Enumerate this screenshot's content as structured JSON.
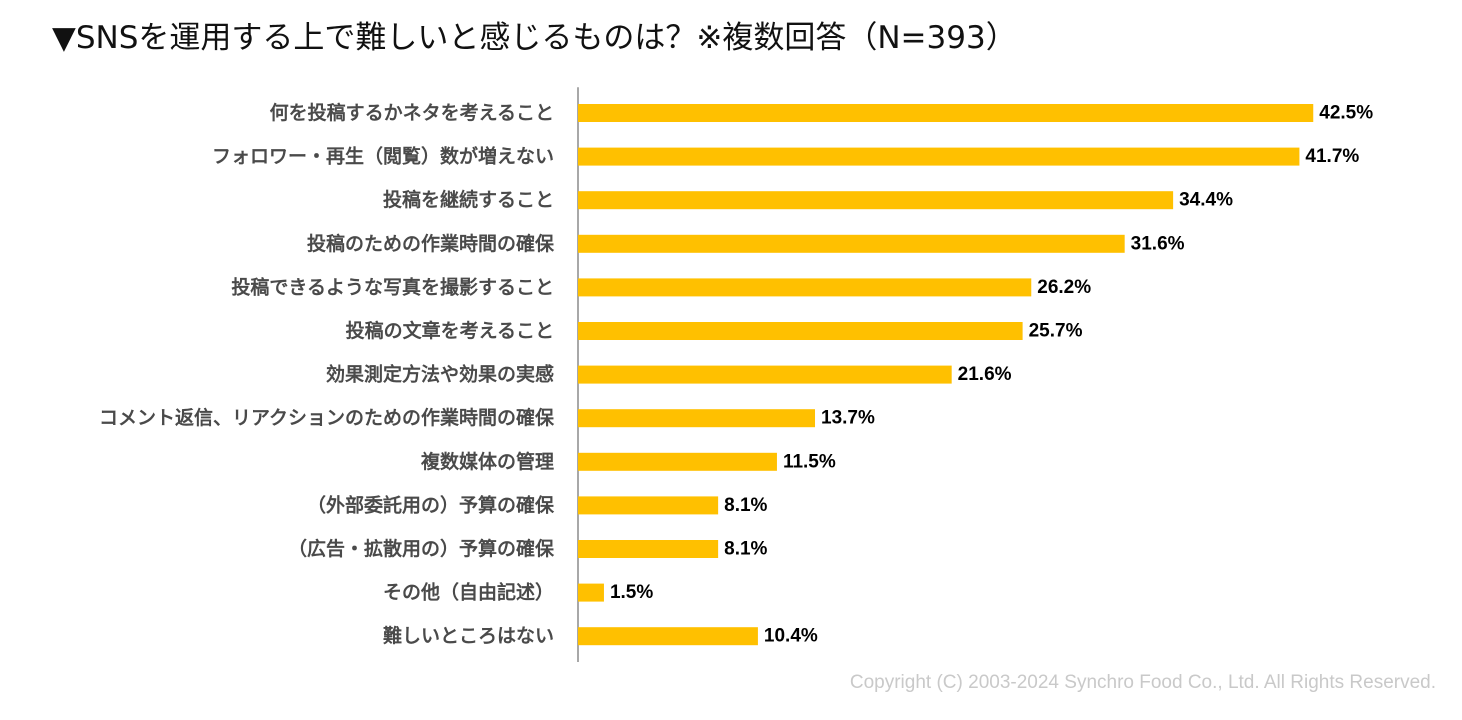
{
  "chart_data": {
    "type": "bar",
    "orientation": "horizontal",
    "title": "▼SNSを運用する上で難しいと感じるものは？※複数回答（N=393）",
    "categories": [
      "何を投稿するかネタを考えること",
      "フォロワー・再生（閲覧）数が増えない",
      "投稿を継続すること",
      "投稿のための作業時間の確保",
      "投稿できるような写真を撮影すること",
      "投稿の文章を考えること",
      "効果測定方法や効果の実感",
      "コメント返信、リアクションのための作業時間の確保",
      "複数媒体の管理",
      "（外部委託用の）予算の確保",
      "（広告・拡散用の）予算の確保",
      "その他（自由記述）",
      "難しいところはない"
    ],
    "values": [
      42.5,
      41.7,
      34.4,
      31.6,
      26.2,
      25.7,
      21.6,
      13.7,
      11.5,
      8.1,
      8.1,
      1.5,
      10.4
    ],
    "value_labels": [
      "42.5%",
      "41.7%",
      "34.4%",
      "31.6%",
      "26.2%",
      "25.7%",
      "21.6%",
      "13.7%",
      "11.5%",
      "8.1%",
      "8.1%",
      "1.5%",
      "10.4%"
    ],
    "unit": "%",
    "xlim": [
      0,
      50
    ],
    "bar_color": "#FFC000",
    "grid": false,
    "legend": "none"
  },
  "footer": {
    "copyright": "Copyright (C) 2003-2024  Synchro Food Co., Ltd. All Rights Reserved."
  }
}
